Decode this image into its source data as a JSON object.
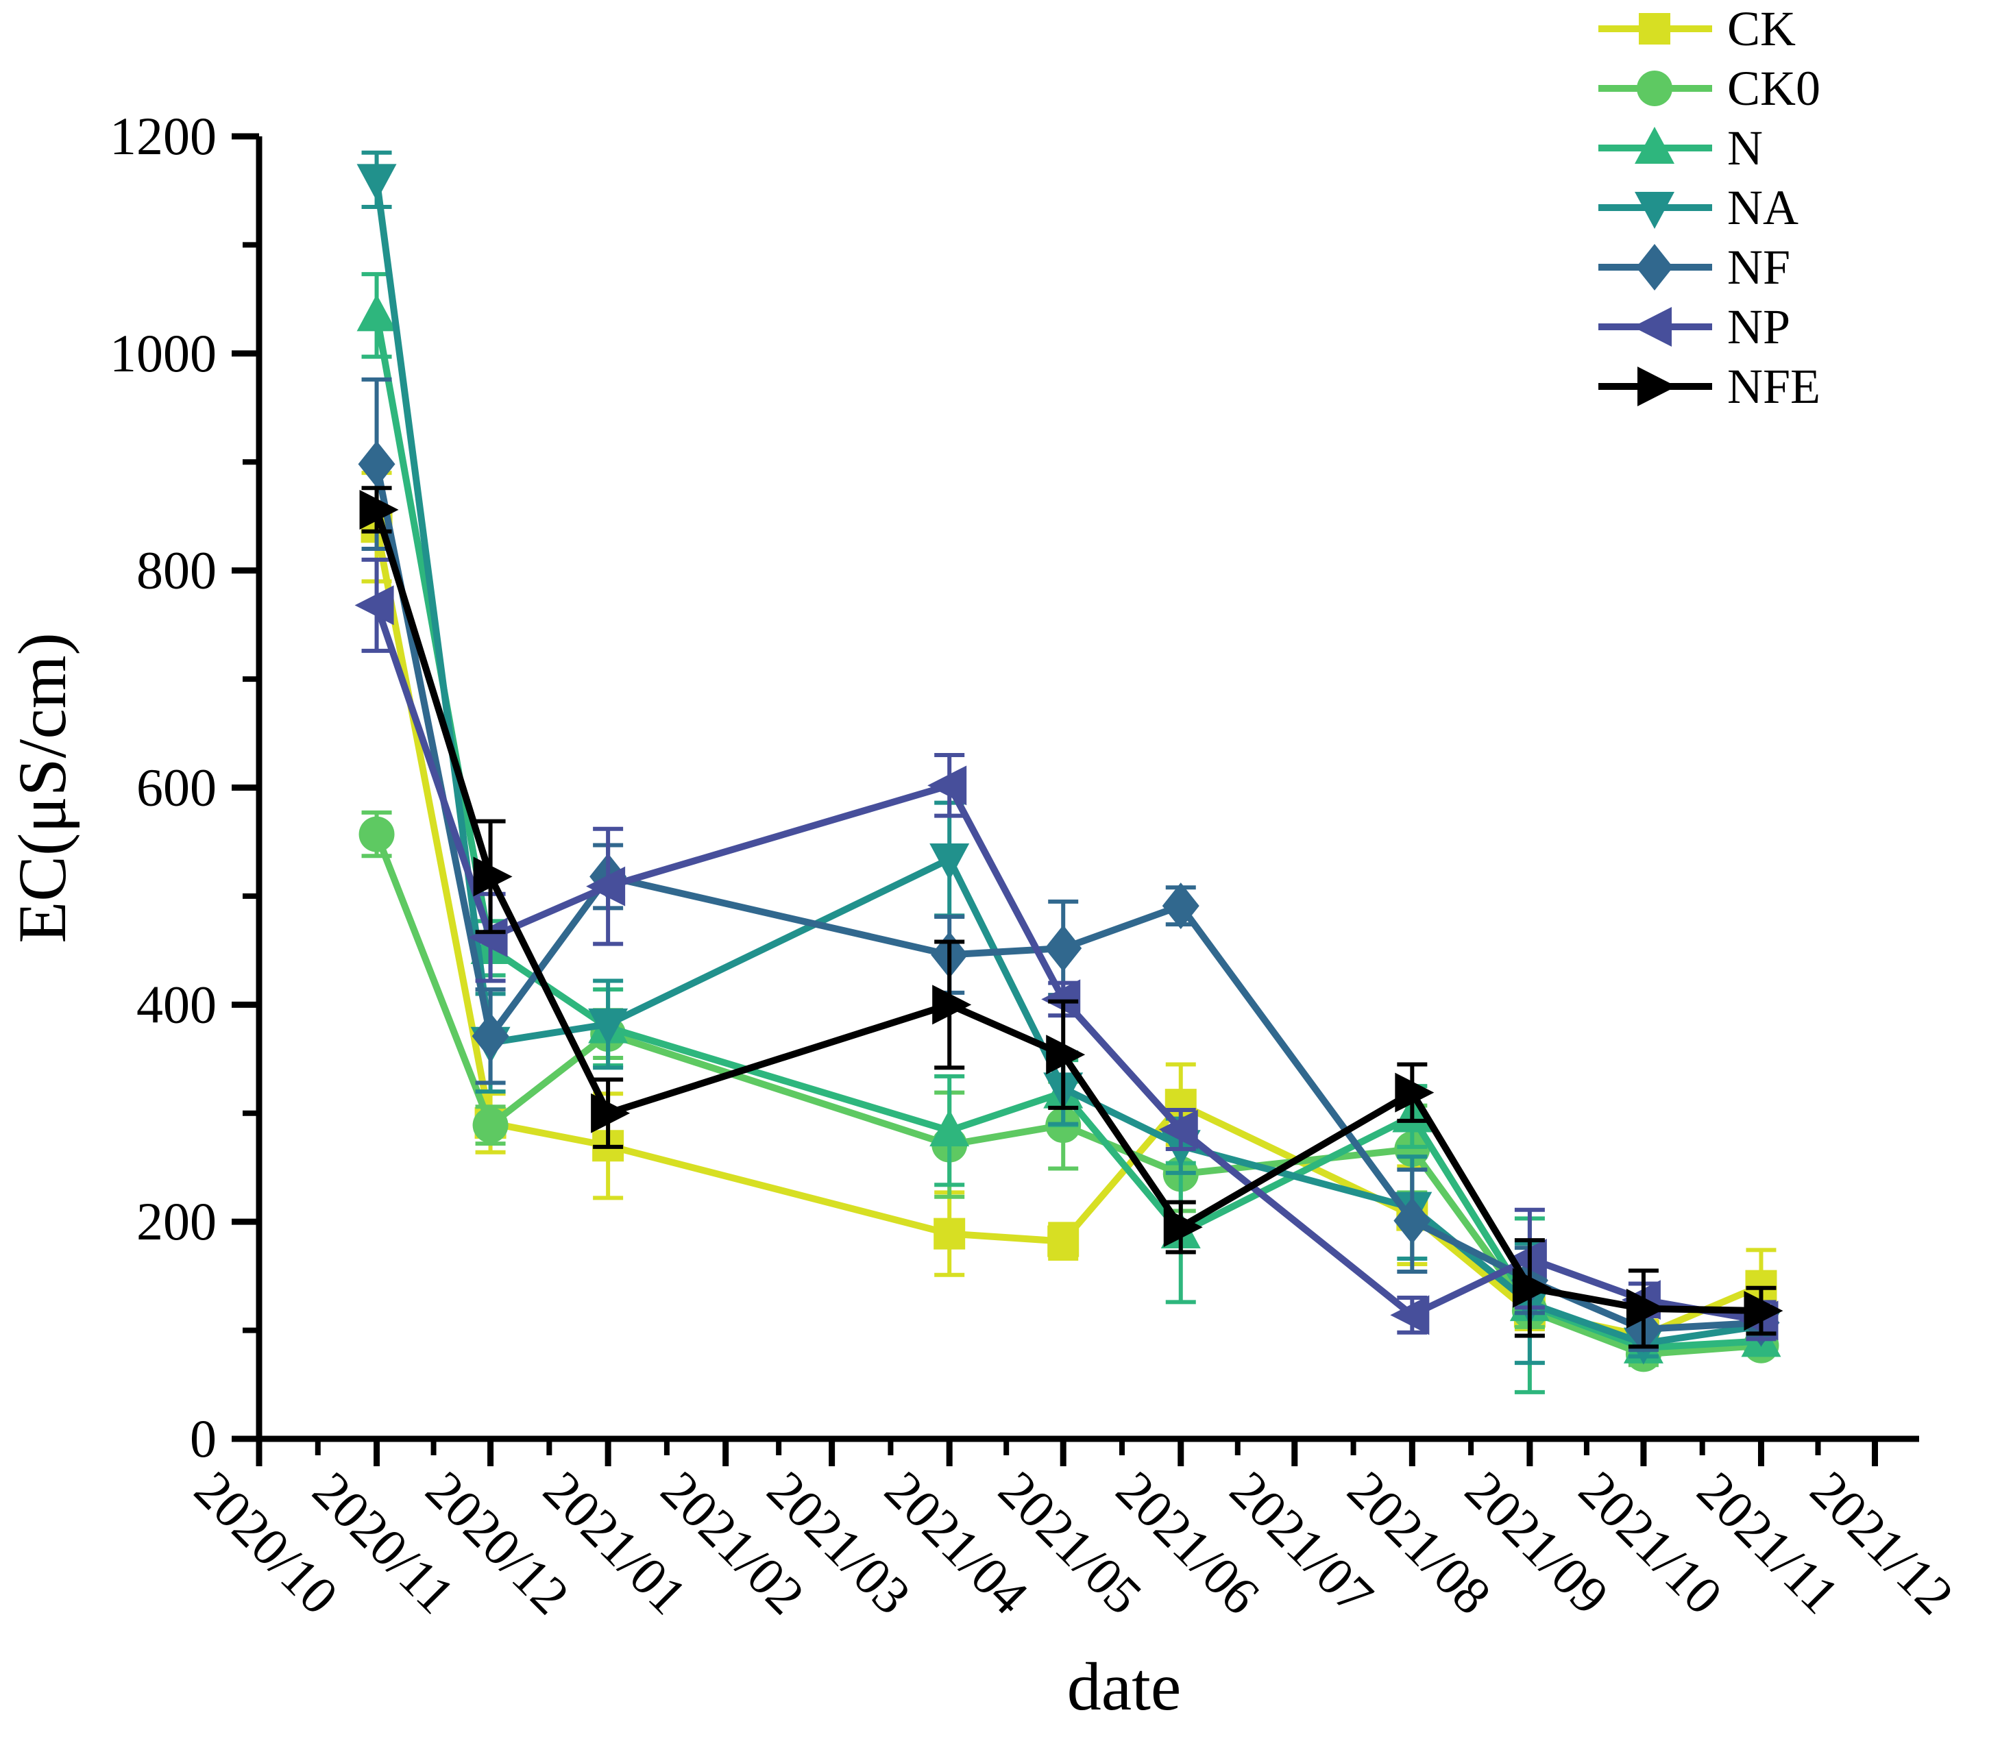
{
  "chart_data": {
    "type": "line",
    "title": "",
    "xlabel": "date",
    "ylabel": "EC(μS/cm)",
    "ylim": [
      0,
      1200
    ],
    "grid": false,
    "legend_position": "top-right-outside",
    "y_major_ticks": [
      0,
      200,
      400,
      600,
      800,
      1000,
      1200
    ],
    "y_minor_ticks": [
      100,
      300,
      500,
      700,
      900,
      1100
    ],
    "x_tick_labels": [
      "2020/10",
      "2020/11",
      "2020/12",
      "2021/01",
      "2021/02",
      "2021/03",
      "2021/04",
      "2021/05",
      "2021/06",
      "2021/07",
      "2021/08",
      "2021/09",
      "2021/10",
      "2021/11",
      "2021/12"
    ],
    "x_tick_day_offsets": [
      0,
      31,
      61,
      92,
      123,
      151,
      182,
      212,
      243,
      273,
      304,
      335,
      365,
      396,
      426
    ],
    "x": [
      "2020/11",
      "2020/12",
      "2021/01",
      "2021/04",
      "2021/05",
      "2021/06",
      "2021/08",
      "2021/09",
      "2021/10",
      "2021/11"
    ],
    "x_day_offsets": [
      31,
      61,
      92,
      182,
      212,
      243,
      304,
      335,
      365,
      396
    ],
    "series": [
      {
        "name": "CK",
        "color": "#d7df23",
        "marker": "square",
        "values": [
          840,
          291,
          270,
          189,
          182,
          308,
          206,
          117,
          95,
          141
        ],
        "errors": [
          50,
          27,
          48,
          38,
          16,
          37,
          45,
          16,
          14,
          33
        ]
      },
      {
        "name": "CK0",
        "color": "#5ec962",
        "marker": "circle",
        "values": [
          557,
          289,
          373,
          271,
          289,
          244,
          267,
          118,
          78,
          86
        ],
        "errors": [
          20,
          17,
          22,
          48,
          40,
          34,
          40,
          15,
          10,
          8
        ]
      },
      {
        "name": "N",
        "color": "#2eb67d",
        "marker": "triangle-up",
        "values": [
          1035,
          452,
          379,
          284,
          319,
          190,
          297,
          123,
          84,
          90
        ],
        "errors": [
          38,
          25,
          35,
          50,
          30,
          64,
          28,
          80,
          12,
          10
        ]
      },
      {
        "name": "NA",
        "color": "#21918c",
        "marker": "triangle-down",
        "values": [
          1160,
          365,
          382,
          534,
          323,
          270,
          213,
          125,
          88,
          104
        ],
        "errors": [
          25,
          45,
          40,
          52,
          33,
          25,
          47,
          55,
          12,
          12
        ]
      },
      {
        "name": "NF",
        "color": "#31688e",
        "marker": "diamond",
        "values": [
          898,
          371,
          518,
          446,
          452,
          491,
          201,
          146,
          101,
          107
        ],
        "errors": [
          78,
          43,
          29,
          35,
          43,
          17,
          47,
          30,
          19,
          12
        ]
      },
      {
        "name": "NP",
        "color": "#474f9b",
        "marker": "triangle-left",
        "values": [
          768,
          462,
          509,
          602,
          405,
          285,
          114,
          166,
          128,
          109
        ],
        "errors": [
          42,
          40,
          53,
          28,
          15,
          18,
          16,
          45,
          15,
          17
        ]
      },
      {
        "name": "NFE",
        "color": "#000000",
        "marker": "triangle-right",
        "values": [
          856,
          518,
          300,
          400,
          354,
          195,
          319,
          139,
          120,
          118
        ],
        "errors": [
          20,
          51,
          31,
          58,
          49,
          23,
          26,
          44,
          35,
          21
        ]
      }
    ]
  },
  "legend": {
    "items": [
      {
        "label": "CK"
      },
      {
        "label": "CK0"
      },
      {
        "label": "N"
      },
      {
        "label": "NA"
      },
      {
        "label": "NF"
      },
      {
        "label": "NP"
      },
      {
        "label": "NFE"
      }
    ]
  },
  "axes": {
    "x_title": "date",
    "y_title": "EC(μS/cm)"
  }
}
